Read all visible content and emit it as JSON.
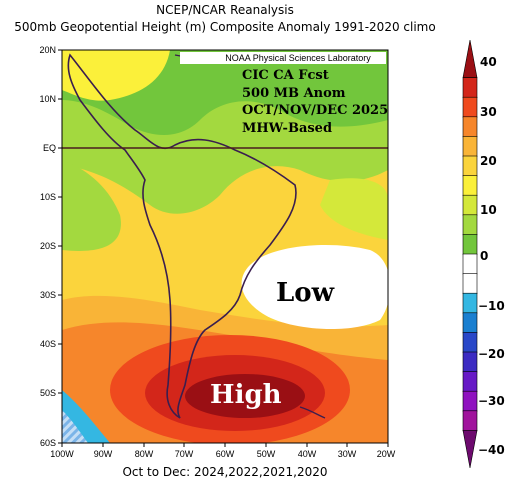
{
  "header": {
    "title": "NCEP/NCAR Reanalysis",
    "subtitle": "500mb Geopotential Height (m) Composite Anomaly 1991-2020 climo"
  },
  "map": {
    "credit": "NOAA Physical Sciences Laboratory",
    "forecast_lines": [
      "CIC CA Fcst",
      "500 MB Anom",
      "OCT/NOV/DEC 2025",
      "MHW-Based"
    ],
    "low_label": "Low",
    "high_label": "High",
    "lat_labels": [
      "20N",
      "10N",
      "EQ",
      "10S",
      "20S",
      "30S",
      "40S",
      "50S",
      "60S"
    ],
    "lon_labels": [
      "100W",
      "90W",
      "80W",
      "70W",
      "60W",
      "50W",
      "40W",
      "30W",
      "20W"
    ],
    "footer": "Oct to Dec: 2024,2022,2021,2020"
  },
  "colorbar": {
    "tick_labels": [
      "40",
      "30",
      "20",
      "10",
      "0",
      "−10",
      "−20",
      "−30",
      "−40"
    ],
    "colors": [
      "#9a0f14",
      "#d3261a",
      "#ef4a1e",
      "#f6862b",
      "#f9b437",
      "#fbd43c",
      "#fbf03a",
      "#d4e83a",
      "#a3d93f",
      "#72c63c",
      "#ffffff",
      "#ffffff",
      "#34b7e2",
      "#1a7fd0",
      "#2947c8",
      "#3c2bc2",
      "#6719c6",
      "#8f12bf",
      "#a0139c",
      "#6d0a6e"
    ]
  }
}
